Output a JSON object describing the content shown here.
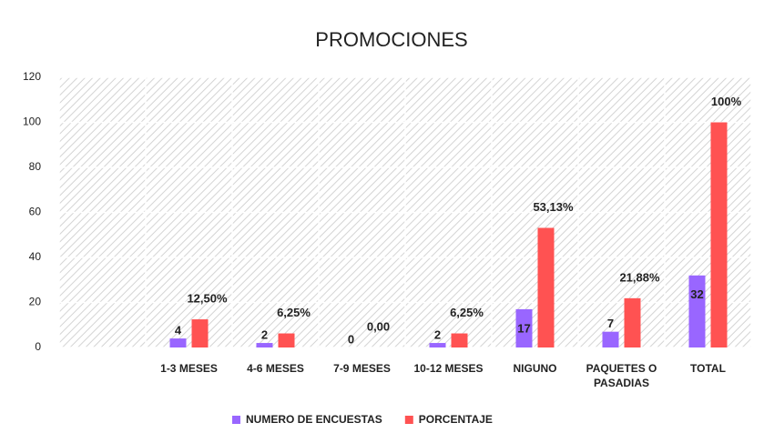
{
  "chart_data": {
    "type": "bar",
    "title": "PROMOCIONES",
    "categories": [
      null,
      "1-3 MESES",
      "4-6 MESES",
      "7-9 MESES",
      "10-12 MESES",
      "NIGUNO",
      "PAQUETES O PASADIAS",
      "TOTAL"
    ],
    "series": [
      {
        "name": "NUMERO DE ENCUESTAS",
        "color": "#9966ff",
        "values": [
          null,
          4,
          2,
          0,
          2,
          17,
          7,
          32
        ]
      },
      {
        "name": "PORCENTAJE",
        "color": "#ff5252",
        "values": [
          null,
          12.5,
          6.25,
          0,
          6.25,
          53.13,
          21.88,
          100
        ],
        "value_labels": [
          null,
          "12,50%",
          "6,25%",
          "0,00",
          "6,25%",
          "53,13%",
          "21,88%",
          "100%"
        ]
      }
    ],
    "ylim": [
      0,
      120
    ],
    "yticks": [
      0,
      20,
      40,
      60,
      80,
      100,
      120
    ],
    "grid": true,
    "legend": "bottom"
  }
}
